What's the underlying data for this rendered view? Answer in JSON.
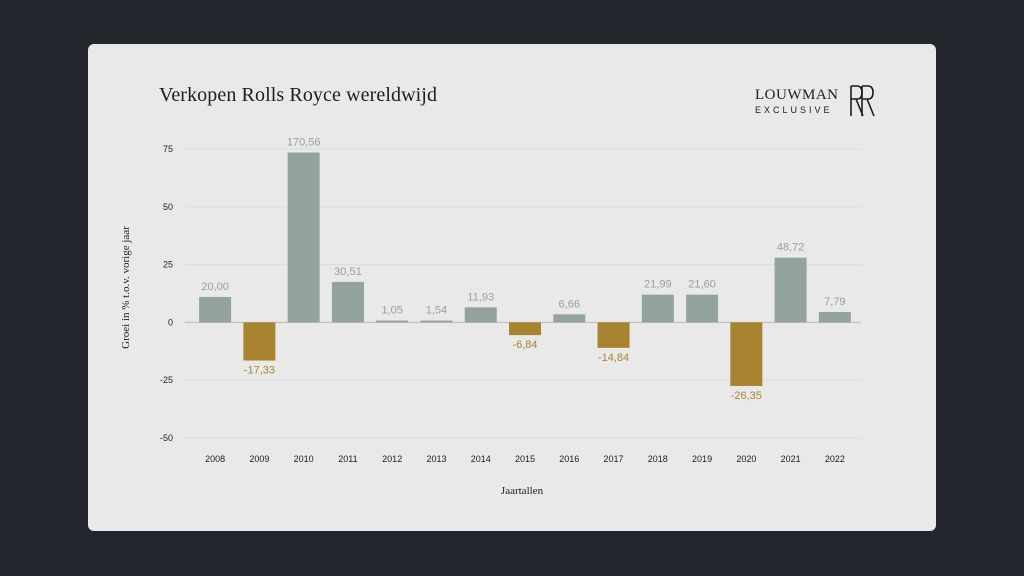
{
  "colors": {
    "background": "#23262d",
    "card": "#e9e9e9",
    "positive": "#93a3a0",
    "negative": "#a98430",
    "grid": "#dcdcdc"
  },
  "brand": {
    "name": "LOUWMAN",
    "sub": "EXCLUSIVE",
    "logo_icon": "rolls-royce-rr-monogram-icon"
  },
  "chart_data": {
    "type": "bar",
    "title": "Verkopen Rolls Royce wereldwijd",
    "xlabel": "Jaartallen",
    "ylabel": "Groei in % t.o.v. vorige jaar",
    "ylim": [
      -50,
      75
    ],
    "yticks": [
      75,
      50,
      25,
      0,
      -25,
      -50
    ],
    "ytick_labels": [
      "75",
      "50",
      "25",
      "0",
      "-25",
      "-50"
    ],
    "grid": true,
    "categories": [
      "2008",
      "2009",
      "2010",
      "2011",
      "2012",
      "2013",
      "2014",
      "2015",
      "2016",
      "2017",
      "2018",
      "2019",
      "2020",
      "2021",
      "2022"
    ],
    "values": [
      20.0,
      -17.33,
      170.56,
      30.51,
      1.05,
      1.54,
      11.93,
      -6.84,
      6.66,
      -14.84,
      21.99,
      21.6,
      -26.35,
      48.72,
      7.79
    ],
    "bar_heights": [
      11,
      -16.5,
      73.5,
      17.5,
      0.8,
      0.8,
      6.5,
      -5.5,
      3.5,
      -11,
      12,
      12,
      -27.5,
      28,
      4.5
    ],
    "value_labels": [
      "20,00",
      "-17,33",
      "170,56",
      "30,51",
      "1,05",
      "1,54",
      "11,93",
      "-6,84",
      "6,66",
      "-14,84",
      "21,99",
      "21,60",
      "-26,35",
      "48,72",
      "7,79"
    ]
  }
}
